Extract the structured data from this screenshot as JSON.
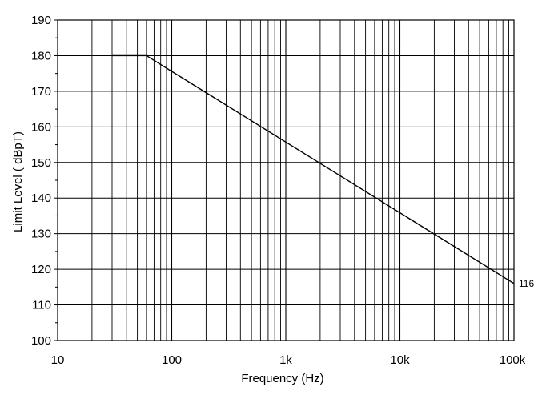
{
  "chart_data": {
    "type": "line",
    "title": "",
    "xlabel": "Frequency (Hz)",
    "ylabel": "Limit Level ( dBpT)",
    "x_scale": "log",
    "xlim": [
      10,
      100000
    ],
    "ylim": [
      100,
      190
    ],
    "grid": true,
    "x_tick_labels": [
      "10",
      "100",
      "1k",
      "10k",
      "100k"
    ],
    "y_ticks": [
      100,
      110,
      120,
      130,
      140,
      150,
      160,
      170,
      180,
      190
    ],
    "series": [
      {
        "x": [
          30,
          60,
          100000
        ],
        "y": [
          180,
          180,
          116
        ]
      }
    ],
    "annotations": [
      {
        "text": "116",
        "x": 100000,
        "y": 116
      }
    ],
    "colors": {
      "line": "#000000",
      "grid": "#000000",
      "background": "#ffffff"
    }
  }
}
